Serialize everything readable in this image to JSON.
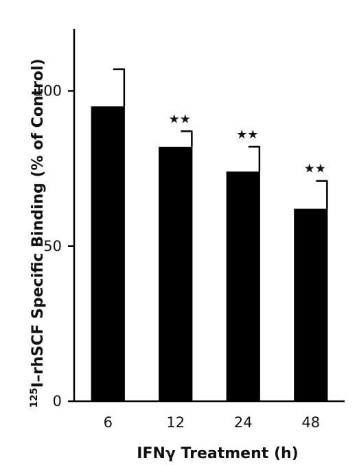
{
  "chart_data": {
    "type": "bar",
    "title": "",
    "xlabel": "IFNγ Treatment (h)",
    "ylabel_sup": "125",
    "ylabel": "I–rhSCF Specific Binding (% of Control)",
    "categories": [
      "6",
      "12",
      "24",
      "48"
    ],
    "values": [
      95,
      82,
      74,
      62
    ],
    "errors": [
      12,
      5,
      8,
      9
    ],
    "significance": [
      "",
      "★★",
      "★★",
      "★★"
    ],
    "ylim": [
      0,
      120
    ],
    "yticks": [
      0,
      50,
      100
    ],
    "bar_color": "#000000",
    "grid": false,
    "legend": "none"
  }
}
